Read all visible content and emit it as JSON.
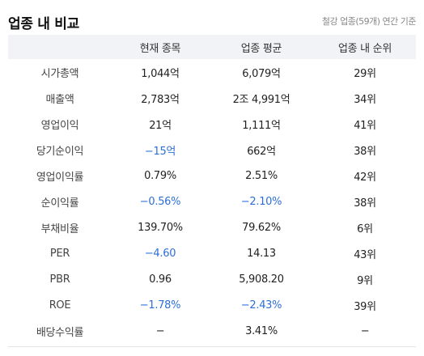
{
  "title": "업종 내 비교",
  "caption": "철강 업종(59개) 연간 기준",
  "colors": {
    "negative": "#2d6fd6",
    "header_bg": "#f2f3f6"
  },
  "columns": [
    "",
    "현재 종목",
    "업종 평균",
    "업종 내 순위"
  ],
  "rows": [
    {
      "label": "시가총액",
      "current": "1,044억",
      "average": "6,079억",
      "rank": "29위",
      "current_negative": false,
      "average_negative": false
    },
    {
      "label": "매출액",
      "current": "2,783억",
      "average": "2조 4,991억",
      "rank": "34위",
      "current_negative": false,
      "average_negative": false
    },
    {
      "label": "영업이익",
      "current": "21억",
      "average": "1,111억",
      "rank": "41위",
      "current_negative": false,
      "average_negative": false
    },
    {
      "label": "당기순이익",
      "current": "−15억",
      "average": "662억",
      "rank": "38위",
      "current_negative": true,
      "average_negative": false
    },
    {
      "label": "영업이익률",
      "current": "0.79%",
      "average": "2.51%",
      "rank": "42위",
      "current_negative": false,
      "average_negative": false
    },
    {
      "label": "순이익률",
      "current": "−0.56%",
      "average": "−2.10%",
      "rank": "38위",
      "current_negative": true,
      "average_negative": true
    },
    {
      "label": "부채비율",
      "current": "139.70%",
      "average": "79.62%",
      "rank": "6위",
      "current_negative": false,
      "average_negative": false
    },
    {
      "label": "PER",
      "current": "−4.60",
      "average": "14.13",
      "rank": "43위",
      "current_negative": true,
      "average_negative": false
    },
    {
      "label": "PBR",
      "current": "0.96",
      "average": "5,908.20",
      "rank": "9위",
      "current_negative": false,
      "average_negative": false
    },
    {
      "label": "ROE",
      "current": "−1.78%",
      "average": "−2.43%",
      "rank": "39위",
      "current_negative": true,
      "average_negative": true
    },
    {
      "label": "배당수익률",
      "current": "−",
      "average": "3.41%",
      "rank": "−",
      "current_negative": false,
      "average_negative": false
    }
  ]
}
